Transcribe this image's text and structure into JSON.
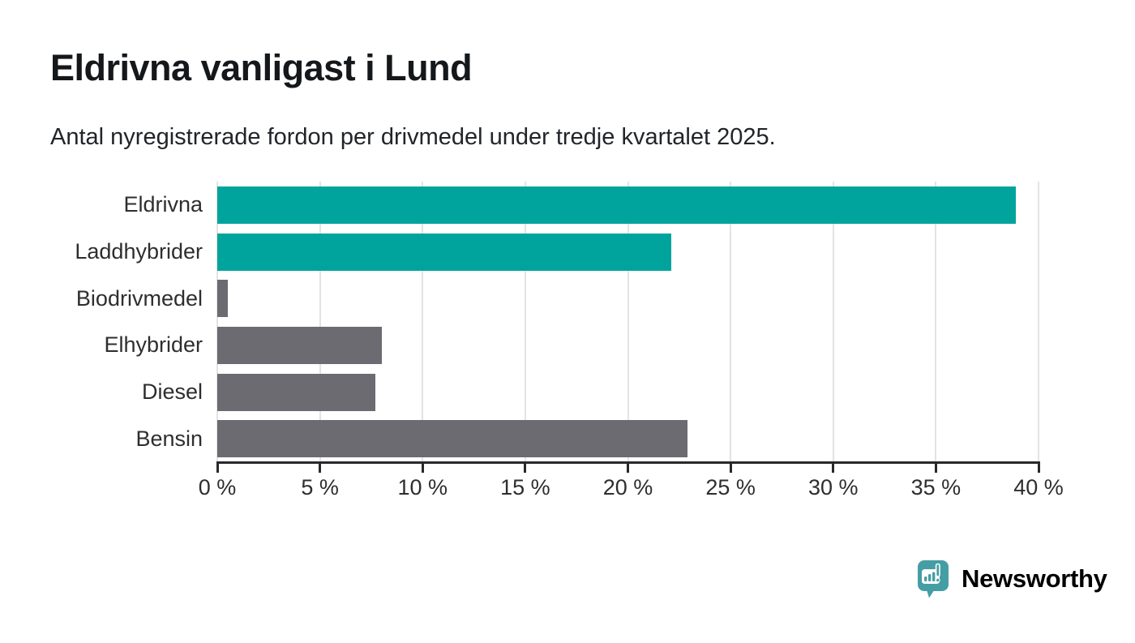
{
  "title": "Eldrivna vanligast i Lund",
  "subtitle": "Antal nyregistrerade fordon per drivmedel under tredje kvartalet 2025.",
  "chart_data": {
    "type": "bar",
    "orientation": "horizontal",
    "title": "Eldrivna vanligast i Lund",
    "subtitle": "Antal nyregistrerade fordon per drivmedel under tredje kvartalet 2025.",
    "categories": [
      "Eldrivna",
      "Laddhybrider",
      "Biodrivmedel",
      "Elhybrider",
      "Diesel",
      "Bensin"
    ],
    "values": [
      38.9,
      22.1,
      0.5,
      8.0,
      7.7,
      22.9
    ],
    "unit": "%",
    "xlim": [
      0,
      40
    ],
    "x_tick_values": [
      0,
      5,
      10,
      15,
      20,
      25,
      30,
      35,
      40
    ],
    "x_ticks": [
      "0 %",
      "5 %",
      "10 %",
      "15 %",
      "20 %",
      "25 %",
      "30 %",
      "35 %",
      "40 %"
    ],
    "grid": true,
    "legend": "none",
    "bar_colors": [
      "#00a49c",
      "#00a49c",
      "#6b6b71",
      "#6b6b71",
      "#6b6b71",
      "#6b6b71"
    ],
    "highlight_color": "#00a49c",
    "default_color": "#6b6b71"
  },
  "branding": {
    "logo_text": "Newsworthy",
    "logo_color": "#459ea4",
    "logo_icon": "newsworthy-chart-bubble-icon"
  }
}
